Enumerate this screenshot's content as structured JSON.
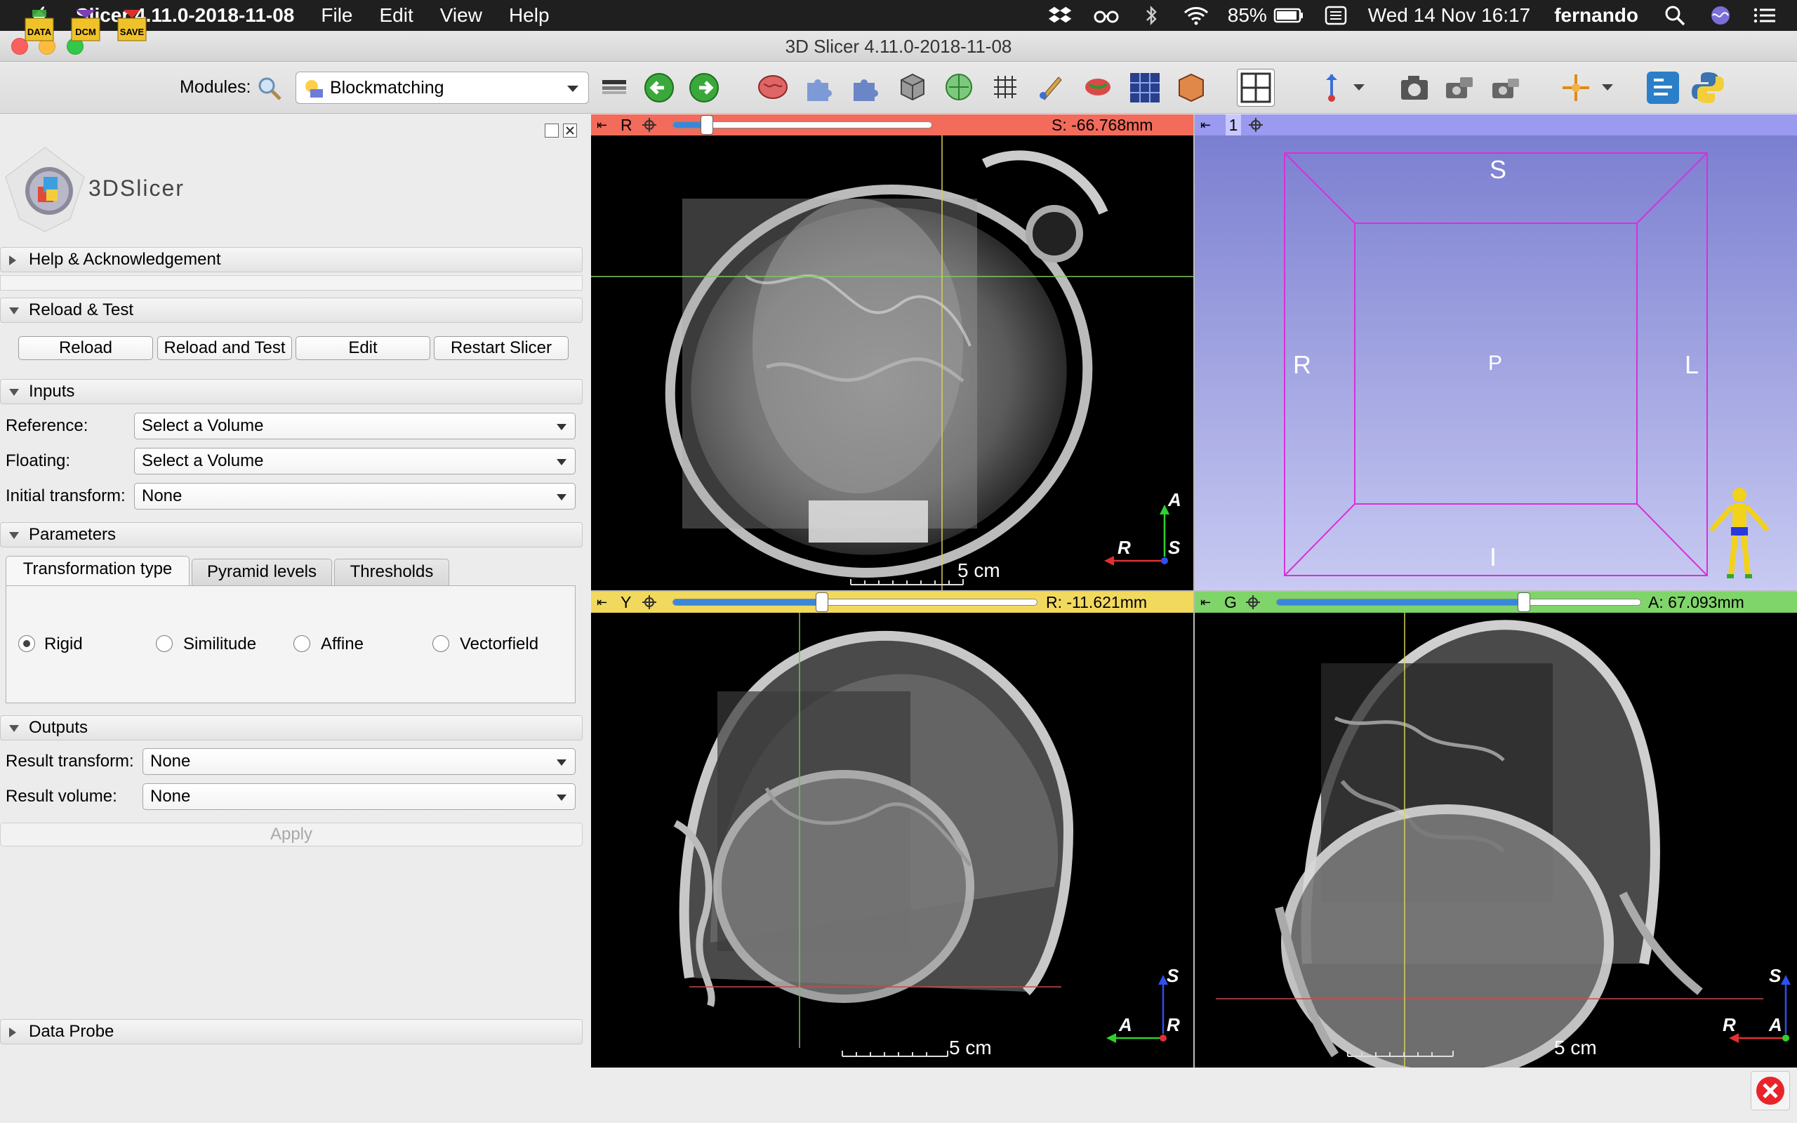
{
  "menubar": {
    "app_name": "Slicer 4.11.0-2018-11-08",
    "menus": [
      "File",
      "Edit",
      "View",
      "Help"
    ],
    "battery": "85%",
    "datetime": "Wed 14 Nov  16:17",
    "user": "fernando"
  },
  "window": {
    "title": "3D Slicer 4.11.0-2018-11-08"
  },
  "toolbar": {
    "modules_label": "Modules:",
    "module_selected": "Blockmatching",
    "data_label": "DATA",
    "dcm_label": "DCM",
    "save_label": "SAVE"
  },
  "logo": {
    "text": "3DSlicer"
  },
  "sections": {
    "help": "Help & Acknowledgement",
    "reload": "Reload & Test",
    "inputs": "Inputs",
    "parameters": "Parameters",
    "outputs": "Outputs",
    "dataprobe": "Data Probe"
  },
  "reload_buttons": {
    "reload": "Reload",
    "reload_test": "Reload and Test",
    "edit": "Edit",
    "restart": "Restart Slicer"
  },
  "inputs": {
    "reference_label": "Reference:",
    "reference_value": "Select a Volume",
    "floating_label": "Floating:",
    "floating_value": "Select a Volume",
    "initial_label": "Initial transform:",
    "initial_value": "None"
  },
  "parameters": {
    "tabs": [
      "Transformation type",
      "Pyramid levels",
      "Thresholds"
    ],
    "radios": [
      "Rigid",
      "Similitude",
      "Affine",
      "Vectorfield"
    ]
  },
  "outputs": {
    "result_transform_label": "Result transform:",
    "result_transform_value": "None",
    "result_volume_label": "Result volume:",
    "result_volume_value": "None",
    "apply": "Apply"
  },
  "views": {
    "red": {
      "label": "R",
      "offset": "S: -66.768mm",
      "slider": 0.13,
      "scale": "5 cm",
      "o1": "A",
      "o2": "R",
      "o3": "S"
    },
    "three_d": {
      "label": "1",
      "S": "S",
      "R": "R",
      "P": "P",
      "L": "L",
      "I": "I"
    },
    "yellow": {
      "label": "Y",
      "offset": "R: -11.621mm",
      "slider": 0.41,
      "scale": "5 cm",
      "o1": "S",
      "o2": "A",
      "o3": "R"
    },
    "green": {
      "label": "G",
      "offset": "A: 67.093mm",
      "slider": 0.68,
      "scale": "5 cm",
      "o1": "S",
      "o2": "R",
      "o3": "A"
    }
  },
  "colors": {
    "red_bar": "#f26b5b",
    "yellow_bar": "#f1d95e",
    "green_bar": "#80d56a",
    "blue_bar": "#9a9af0"
  }
}
